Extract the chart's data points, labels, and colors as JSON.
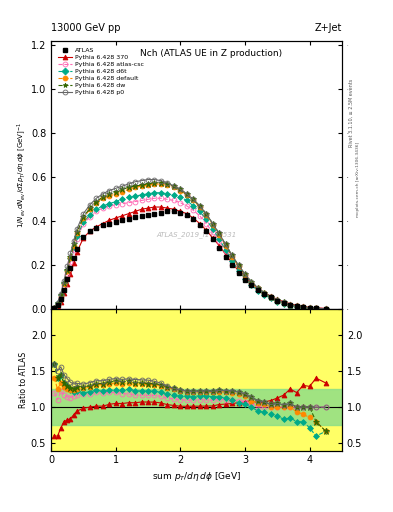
{
  "title_top": "13000 GeV pp",
  "title_right": "Z+Jet",
  "plot_title": "Nch (ATLAS UE in Z production)",
  "xlabel": "sum p_{T}/d\\eta d\\phi [GeV]",
  "ylabel_main": "1/N_{ev} dN_{ev}/dsum p_{T}/d\\eta d\\phi  [GeV]^{-1}",
  "ylabel_ratio": "Ratio to ATLAS",
  "watermark": "ATLAS_2019_I1736531",
  "right_label": "Rivet 3.1.10, ≥ 2.5M events",
  "right_label2": "mcplots.cern.ch [arXiv:1306.3436]",
  "xlim": [
    0,
    4.5
  ],
  "ylim_main": [
    0,
    1.22
  ],
  "ylim_ratio": [
    0.4,
    2.35
  ],
  "x_atlas": [
    0.05,
    0.1,
    0.15,
    0.2,
    0.25,
    0.3,
    0.35,
    0.4,
    0.5,
    0.6,
    0.7,
    0.8,
    0.9,
    1.0,
    1.1,
    1.2,
    1.3,
    1.4,
    1.5,
    1.6,
    1.7,
    1.8,
    1.9,
    2.0,
    2.1,
    2.2,
    2.3,
    2.4,
    2.5,
    2.6,
    2.7,
    2.8,
    2.9,
    3.0,
    3.1,
    3.2,
    3.3,
    3.4,
    3.5,
    3.6,
    3.7,
    3.8,
    3.9,
    4.0,
    4.1,
    4.25
  ],
  "y_atlas": [
    0.005,
    0.02,
    0.045,
    0.09,
    0.14,
    0.19,
    0.235,
    0.275,
    0.33,
    0.355,
    0.37,
    0.385,
    0.39,
    0.395,
    0.405,
    0.41,
    0.42,
    0.425,
    0.43,
    0.435,
    0.44,
    0.445,
    0.445,
    0.44,
    0.43,
    0.41,
    0.385,
    0.355,
    0.32,
    0.28,
    0.24,
    0.2,
    0.165,
    0.135,
    0.11,
    0.09,
    0.07,
    0.055,
    0.04,
    0.03,
    0.02,
    0.015,
    0.01,
    0.007,
    0.005,
    0.003
  ],
  "series": [
    {
      "label": "Pythia 6.428 370",
      "color": "#cc0000",
      "marker": "^",
      "linestyle": "-",
      "open": false,
      "markersize": 3.5,
      "x": [
        0.05,
        0.1,
        0.15,
        0.2,
        0.25,
        0.3,
        0.35,
        0.4,
        0.5,
        0.6,
        0.7,
        0.8,
        0.9,
        1.0,
        1.1,
        1.2,
        1.3,
        1.4,
        1.5,
        1.6,
        1.7,
        1.8,
        1.9,
        2.0,
        2.1,
        2.2,
        2.3,
        2.4,
        2.5,
        2.6,
        2.7,
        2.8,
        2.9,
        3.0,
        3.1,
        3.2,
        3.3,
        3.4,
        3.5,
        3.6,
        3.7,
        3.8,
        3.9,
        4.0,
        4.1,
        4.25
      ],
      "y": [
        0.003,
        0.012,
        0.032,
        0.072,
        0.115,
        0.16,
        0.21,
        0.26,
        0.325,
        0.355,
        0.375,
        0.39,
        0.405,
        0.415,
        0.425,
        0.435,
        0.445,
        0.455,
        0.46,
        0.465,
        0.465,
        0.46,
        0.455,
        0.445,
        0.435,
        0.415,
        0.39,
        0.36,
        0.325,
        0.29,
        0.25,
        0.21,
        0.175,
        0.145,
        0.12,
        0.095,
        0.075,
        0.06,
        0.045,
        0.035,
        0.025,
        0.018,
        0.013,
        0.009,
        0.007,
        0.004
      ]
    },
    {
      "label": "Pythia 6.428 atlas-csc",
      "color": "#ff69b4",
      "marker": "o",
      "linestyle": "--",
      "open": true,
      "markersize": 3.5,
      "x": [
        0.05,
        0.1,
        0.15,
        0.2,
        0.25,
        0.3,
        0.35,
        0.4,
        0.5,
        0.6,
        0.7,
        0.8,
        0.9,
        1.0,
        1.1,
        1.2,
        1.3,
        1.4,
        1.5,
        1.6,
        1.7,
        1.8,
        1.9,
        2.0,
        2.1,
        2.2,
        2.3,
        2.4,
        2.5,
        2.6,
        2.7,
        2.8,
        2.9,
        3.0,
        3.1,
        3.2,
        3.3,
        3.4,
        3.5,
        3.6,
        3.7,
        3.8,
        3.9,
        4.0,
        4.1,
        4.25
      ],
      "y": [
        0.006,
        0.022,
        0.055,
        0.105,
        0.16,
        0.215,
        0.27,
        0.32,
        0.39,
        0.42,
        0.445,
        0.46,
        0.47,
        0.475,
        0.48,
        0.485,
        0.49,
        0.495,
        0.5,
        0.505,
        0.505,
        0.5,
        0.495,
        0.485,
        0.47,
        0.45,
        0.425,
        0.39,
        0.35,
        0.31,
        0.265,
        0.22,
        0.18,
        0.145,
        0.115,
        0.09,
        0.07,
        0.055,
        0.04,
        0.03,
        0.02,
        0.015,
        0.01,
        0.007,
        0.005,
        0.003
      ]
    },
    {
      "label": "Pythia 6.428 d6t",
      "color": "#00aa88",
      "marker": "D",
      "linestyle": "--",
      "open": false,
      "markersize": 3.0,
      "x": [
        0.05,
        0.1,
        0.15,
        0.2,
        0.25,
        0.3,
        0.35,
        0.4,
        0.5,
        0.6,
        0.7,
        0.8,
        0.9,
        1.0,
        1.1,
        1.2,
        1.3,
        1.4,
        1.5,
        1.6,
        1.7,
        1.8,
        1.9,
        2.0,
        2.1,
        2.2,
        2.3,
        2.4,
        2.5,
        2.6,
        2.7,
        2.8,
        2.9,
        3.0,
        3.1,
        3.2,
        3.3,
        3.4,
        3.5,
        3.6,
        3.7,
        3.8,
        3.9,
        4.0,
        4.1,
        4.25
      ],
      "y": [
        0.008,
        0.028,
        0.065,
        0.12,
        0.18,
        0.235,
        0.285,
        0.335,
        0.395,
        0.43,
        0.455,
        0.47,
        0.48,
        0.49,
        0.5,
        0.51,
        0.515,
        0.52,
        0.525,
        0.53,
        0.53,
        0.525,
        0.52,
        0.51,
        0.495,
        0.47,
        0.445,
        0.41,
        0.365,
        0.32,
        0.27,
        0.22,
        0.175,
        0.14,
        0.11,
        0.085,
        0.065,
        0.05,
        0.035,
        0.025,
        0.017,
        0.012,
        0.008,
        0.005,
        0.003,
        0.002
      ]
    },
    {
      "label": "Pythia 6.428 default",
      "color": "#ff8800",
      "marker": "o",
      "linestyle": "--",
      "open": false,
      "markersize": 3.5,
      "x": [
        0.05,
        0.1,
        0.15,
        0.2,
        0.25,
        0.3,
        0.35,
        0.4,
        0.5,
        0.6,
        0.7,
        0.8,
        0.9,
        1.0,
        1.1,
        1.2,
        1.3,
        1.4,
        1.5,
        1.6,
        1.7,
        1.8,
        1.9,
        2.0,
        2.1,
        2.2,
        2.3,
        2.4,
        2.5,
        2.6,
        2.7,
        2.8,
        2.9,
        3.0,
        3.1,
        3.2,
        3.3,
        3.4,
        3.5,
        3.6,
        3.7,
        3.8,
        3.9,
        4.0,
        4.1,
        4.25
      ],
      "y": [
        0.007,
        0.025,
        0.06,
        0.115,
        0.175,
        0.235,
        0.29,
        0.345,
        0.415,
        0.455,
        0.485,
        0.505,
        0.515,
        0.525,
        0.535,
        0.545,
        0.555,
        0.56,
        0.565,
        0.57,
        0.57,
        0.565,
        0.555,
        0.54,
        0.52,
        0.495,
        0.465,
        0.43,
        0.385,
        0.34,
        0.29,
        0.24,
        0.195,
        0.155,
        0.12,
        0.095,
        0.073,
        0.055,
        0.04,
        0.03,
        0.02,
        0.014,
        0.009,
        0.006,
        0.004,
        0.002
      ]
    },
    {
      "label": "Pythia 6.428 dw",
      "color": "#336600",
      "marker": "*",
      "linestyle": "--",
      "open": false,
      "markersize": 4.5,
      "x": [
        0.05,
        0.1,
        0.15,
        0.2,
        0.25,
        0.3,
        0.35,
        0.4,
        0.5,
        0.6,
        0.7,
        0.8,
        0.9,
        1.0,
        1.1,
        1.2,
        1.3,
        1.4,
        1.5,
        1.6,
        1.7,
        1.8,
        1.9,
        2.0,
        2.1,
        2.2,
        2.3,
        2.4,
        2.5,
        2.6,
        2.7,
        2.8,
        2.9,
        3.0,
        3.1,
        3.2,
        3.3,
        3.4,
        3.5,
        3.6,
        3.7,
        3.8,
        3.9,
        4.0,
        4.1,
        4.25
      ],
      "y": [
        0.008,
        0.028,
        0.065,
        0.12,
        0.18,
        0.24,
        0.295,
        0.35,
        0.42,
        0.46,
        0.49,
        0.51,
        0.525,
        0.535,
        0.545,
        0.555,
        0.56,
        0.565,
        0.57,
        0.575,
        0.575,
        0.57,
        0.56,
        0.545,
        0.525,
        0.5,
        0.47,
        0.435,
        0.39,
        0.345,
        0.295,
        0.245,
        0.2,
        0.16,
        0.125,
        0.098,
        0.075,
        0.057,
        0.042,
        0.031,
        0.021,
        0.015,
        0.01,
        0.007,
        0.004,
        0.002
      ]
    },
    {
      "label": "Pythia 6.428 p0",
      "color": "#666666",
      "marker": "o",
      "linestyle": "-",
      "open": true,
      "markersize": 3.5,
      "x": [
        0.05,
        0.1,
        0.15,
        0.2,
        0.25,
        0.3,
        0.35,
        0.4,
        0.5,
        0.6,
        0.7,
        0.8,
        0.9,
        1.0,
        1.1,
        1.2,
        1.3,
        1.4,
        1.5,
        1.6,
        1.7,
        1.8,
        1.9,
        2.0,
        2.1,
        2.2,
        2.3,
        2.4,
        2.5,
        2.6,
        2.7,
        2.8,
        2.9,
        3.0,
        3.1,
        3.2,
        3.3,
        3.4,
        3.5,
        3.6,
        3.7,
        3.8,
        3.9,
        4.0,
        4.1,
        4.25
      ],
      "y": [
        0.008,
        0.03,
        0.07,
        0.13,
        0.195,
        0.255,
        0.31,
        0.365,
        0.435,
        0.475,
        0.505,
        0.525,
        0.54,
        0.55,
        0.56,
        0.57,
        0.58,
        0.585,
        0.59,
        0.59,
        0.585,
        0.575,
        0.56,
        0.545,
        0.525,
        0.5,
        0.47,
        0.435,
        0.39,
        0.345,
        0.295,
        0.245,
        0.2,
        0.16,
        0.125,
        0.098,
        0.075,
        0.057,
        0.042,
        0.031,
        0.021,
        0.015,
        0.01,
        0.007,
        0.005,
        0.003
      ]
    }
  ],
  "yticks_main": [
    0.0,
    0.2,
    0.4,
    0.6,
    0.8,
    1.0,
    1.2
  ],
  "ratio_yticks": [
    0.5,
    1.0,
    1.5,
    2.0
  ],
  "xticks": [
    0,
    1,
    2,
    3,
    4
  ]
}
